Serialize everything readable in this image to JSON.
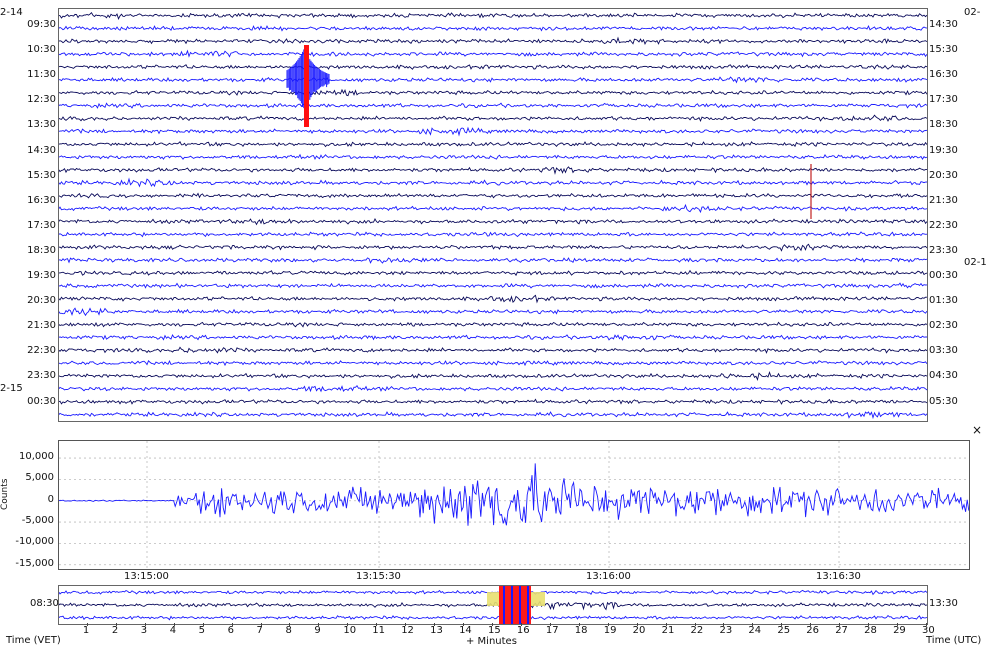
{
  "helicorder": {
    "left_date_top": "2-14",
    "left_date_bottom": "2-15",
    "right_date_top": "02-",
    "right_date_mid": "02-1",
    "left_times": [
      "09:30",
      "10:30",
      "11:30",
      "12:30",
      "13:30",
      "14:30",
      "15:30",
      "16:30",
      "17:30",
      "18:30",
      "19:30",
      "20:30",
      "21:30",
      "22:30",
      "23:30",
      "00:30"
    ],
    "right_times": [
      "14:30",
      "15:30",
      "16:30",
      "17:30",
      "18:30",
      "19:30",
      "20:30",
      "21:30",
      "22:30",
      "23:30",
      "00:30",
      "01:30",
      "02:30",
      "03:30",
      "04:30",
      "05:30"
    ],
    "trace_colors": [
      "#0a0a5a",
      "#1a1aff"
    ],
    "event_color": "#ff1010",
    "row_count": 32
  },
  "zoom_panel": {
    "close_label": "×",
    "ylabel": "Counts",
    "y_ticks": [
      "10,000",
      "5,000",
      "0",
      "-5,000",
      "-10,000",
      "-15,000"
    ],
    "y_tick_values": [
      10000,
      5000,
      0,
      -5000,
      -10000,
      -15000
    ],
    "ylim": [
      -16000,
      14000
    ],
    "x_ticks": [
      "13:15:00",
      "13:15:30",
      "13:16:00",
      "13:16:30"
    ],
    "trace_color": "#1a1aff"
  },
  "strip": {
    "left_time": "08:30",
    "right_time": "13:30",
    "minute_ticks": [
      "1",
      "2",
      "3",
      "4",
      "5",
      "6",
      "7",
      "8",
      "9",
      "10",
      "11",
      "12",
      "13",
      "14",
      "15",
      "16",
      "17",
      "18",
      "19",
      "20",
      "21",
      "22",
      "23",
      "24",
      "25",
      "26",
      "27",
      "28",
      "29",
      "30"
    ],
    "xlabel": "+ Minutes",
    "left_axis_label": "Time (VET)",
    "right_axis_label": "Time (UTC)"
  }
}
